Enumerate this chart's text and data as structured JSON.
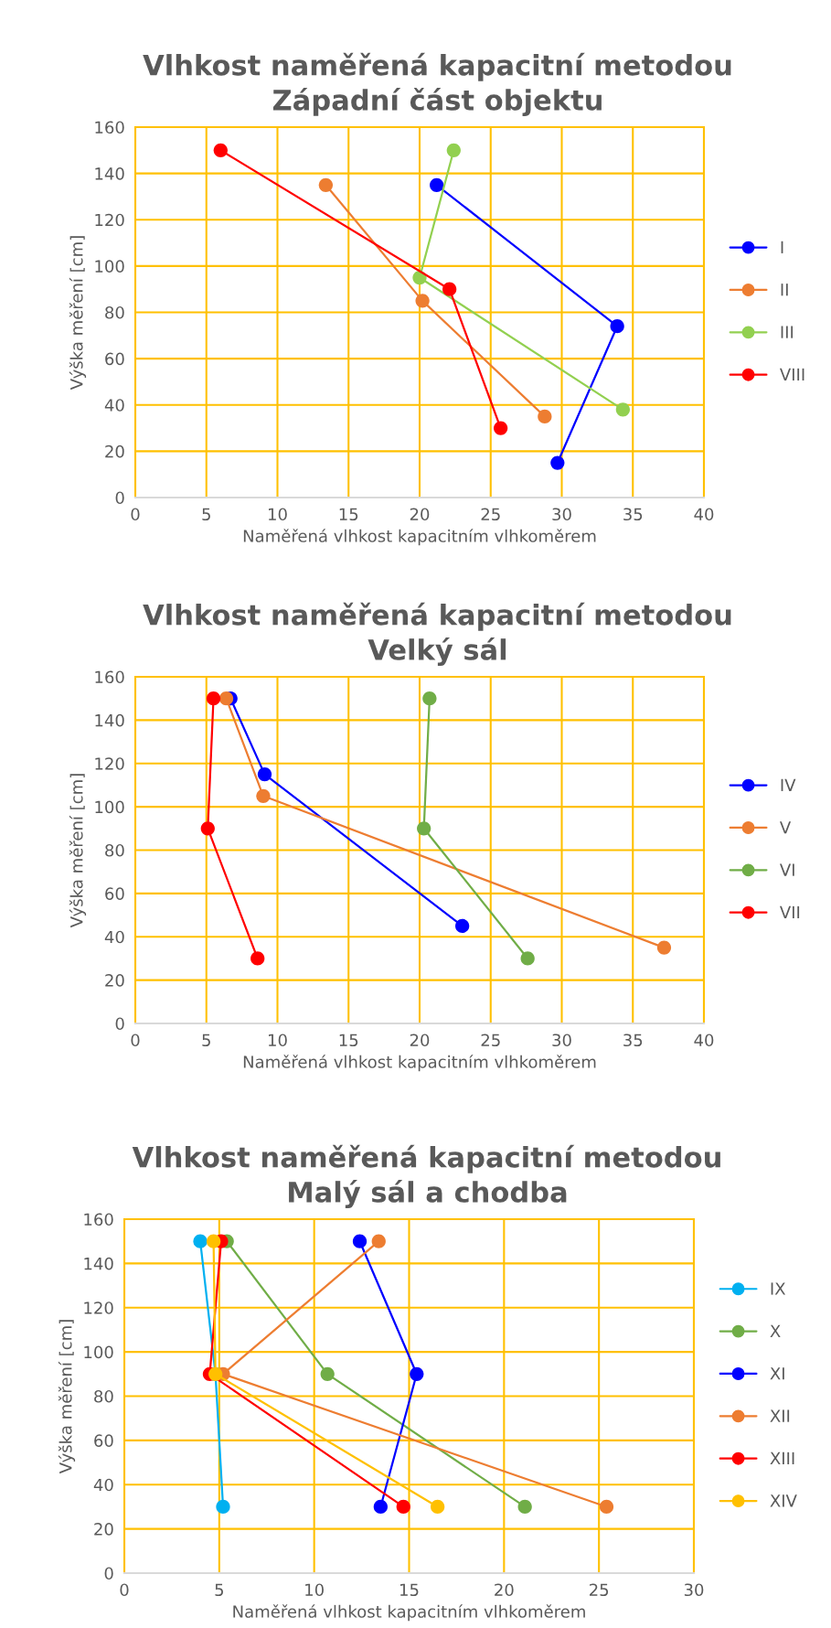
{
  "chart_data": [
    {
      "type": "line",
      "title": "Vlhkost naměřená kapacitní metodou\nZápadní část objektu",
      "xlabel": "Naměřená vlhkost kapacitním vlhkoměrem",
      "ylabel": "Výška měření [cm]",
      "xlim": [
        0,
        40
      ],
      "xticks": [
        0,
        5,
        10,
        15,
        20,
        25,
        30,
        35,
        40
      ],
      "ylim": [
        0,
        160
      ],
      "yticks": [
        0,
        20,
        40,
        60,
        80,
        100,
        120,
        140,
        160
      ],
      "grid": true,
      "legend": "right",
      "marker": "circle",
      "line_style": "solid",
      "series": [
        {
          "name": "I",
          "color": "#0000ff",
          "x": [
            21.2,
            33.9,
            29.7
          ],
          "values": [
            135,
            74,
            15
          ]
        },
        {
          "name": "II",
          "color": "#ed7d31",
          "x": [
            13.4,
            20.2,
            28.8
          ],
          "values": [
            135,
            85,
            35
          ]
        },
        {
          "name": "III",
          "color": "#92d050",
          "x": [
            22.4,
            20.0,
            34.3
          ],
          "values": [
            150,
            95,
            38
          ]
        },
        {
          "name": "VIII",
          "color": "#ff0000",
          "x": [
            6.0,
            22.1,
            25.7
          ],
          "values": [
            150,
            90,
            30
          ]
        }
      ]
    },
    {
      "type": "line",
      "title": "Vlhkost naměřená kapacitní metodou\nVelký sál",
      "xlabel": "Naměřená vlhkost kapacitním vlhkoměrem",
      "ylabel": "Výška měření [cm]",
      "xlim": [
        0,
        40
      ],
      "xticks": [
        0,
        5,
        10,
        15,
        20,
        25,
        30,
        35,
        40
      ],
      "ylim": [
        0,
        160
      ],
      "yticks": [
        0,
        20,
        40,
        60,
        80,
        100,
        120,
        140,
        160
      ],
      "grid": true,
      "legend": "right",
      "marker": "circle",
      "line_style": "solid",
      "series": [
        {
          "name": "IV",
          "color": "#0000ff",
          "x": [
            6.7,
            9.1,
            23.0
          ],
          "values": [
            150,
            115,
            45
          ]
        },
        {
          "name": "V",
          "color": "#ed7d31",
          "x": [
            6.4,
            9.0,
            37.2
          ],
          "values": [
            150,
            105,
            35
          ]
        },
        {
          "name": "VI",
          "color": "#70ad47",
          "x": [
            20.7,
            20.3,
            27.6
          ],
          "values": [
            150,
            90,
            30
          ]
        },
        {
          "name": "VII",
          "color": "#ff0000",
          "x": [
            5.5,
            5.1,
            8.6
          ],
          "values": [
            150,
            90,
            30
          ]
        }
      ]
    },
    {
      "type": "line",
      "title": "Vlhkost naměřená kapacitní metodou\nMalý sál a chodba",
      "xlabel": "Naměřená vlhkost kapacitním vlhkoměrem",
      "ylabel": "Výška měření [cm]",
      "xlim": [
        0,
        30
      ],
      "xticks": [
        0,
        5,
        10,
        15,
        20,
        25,
        30
      ],
      "ylim": [
        0,
        160
      ],
      "yticks": [
        0,
        20,
        40,
        60,
        80,
        100,
        120,
        140,
        160
      ],
      "grid": true,
      "legend": "right",
      "marker": "circle",
      "line_style": "solid",
      "series": [
        {
          "name": "IX",
          "color": "#00b0f0",
          "x": [
            4.0,
            4.8,
            5.2
          ],
          "values": [
            150,
            90,
            30
          ]
        },
        {
          "name": "X",
          "color": "#70ad47",
          "x": [
            5.4,
            10.7,
            21.1
          ],
          "values": [
            150,
            90,
            30
          ]
        },
        {
          "name": "XI",
          "color": "#0000ff",
          "x": [
            12.4,
            15.4,
            13.5
          ],
          "values": [
            150,
            90,
            30
          ]
        },
        {
          "name": "XII",
          "color": "#ed7d31",
          "x": [
            13.4,
            5.2,
            25.4
          ],
          "values": [
            150,
            90,
            30
          ]
        },
        {
          "name": "XIII",
          "color": "#ff0000",
          "x": [
            5.1,
            4.5,
            14.7
          ],
          "values": [
            150,
            90,
            30
          ]
        },
        {
          "name": "XIV",
          "color": "#ffc000",
          "x": [
            4.7,
            4.8,
            16.5
          ],
          "values": [
            150,
            90,
            30
          ]
        }
      ]
    }
  ]
}
